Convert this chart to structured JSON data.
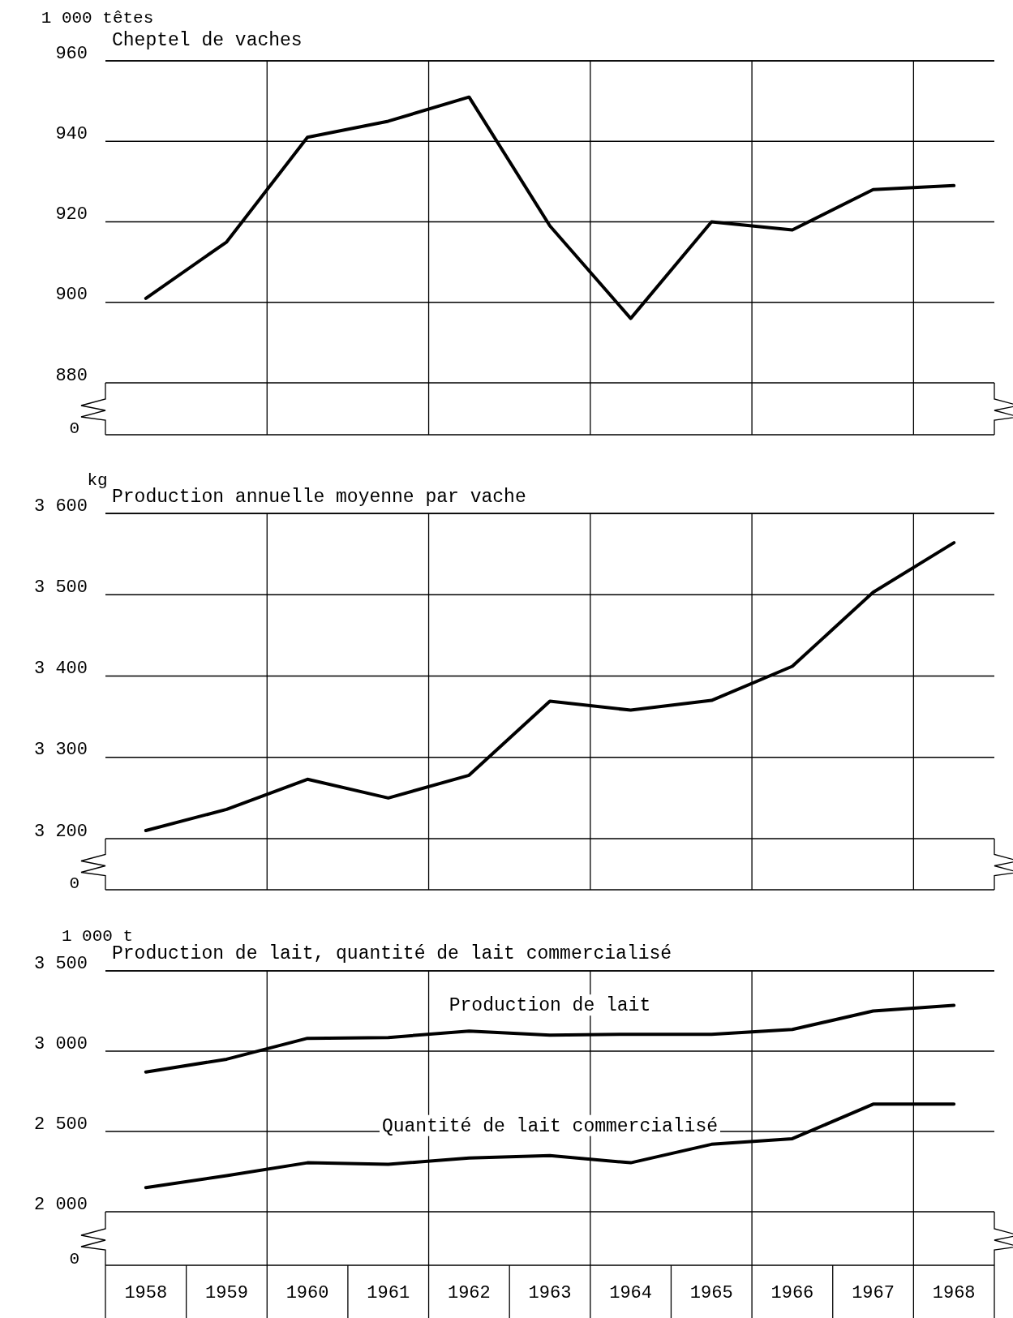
{
  "chart_data": [
    {
      "type": "line",
      "title": "Cheptel de vaches",
      "ylabel": "1 000  têtes",
      "categories": [
        null,
        null,
        null,
        null,
        null,
        null,
        null,
        null,
        null,
        null,
        null
      ],
      "series": [
        {
          "color": "#000000",
          "values": [
            901,
            915,
            941,
            945,
            951,
            919,
            896,
            920,
            918,
            928,
            929
          ]
        }
      ],
      "ylim": [
        880,
        960
      ],
      "yticks": [
        880,
        900,
        920,
        940,
        960
      ],
      "grid": true,
      "tick_labels": "y",
      "annotations": [
        "0"
      ]
    },
    {
      "type": "line",
      "title": "Production annuelle moyenne par vache",
      "ylabel": "kg",
      "categories": [
        null,
        null,
        null,
        null,
        null,
        null,
        null,
        null,
        null,
        null,
        null
      ],
      "series": [
        {
          "color": "#000000",
          "values": [
            3210,
            3236,
            3273,
            3250,
            3278,
            3369,
            3358,
            3370,
            3412,
            3503,
            3564
          ]
        }
      ],
      "ylim": [
        3200,
        3600
      ],
      "yticks": [
        {
          "value": 3200,
          "label": "3 200"
        },
        {
          "value": 3300,
          "label": "3 300"
        },
        {
          "value": 3400,
          "label": "3 400"
        },
        {
          "value": 3500,
          "label": "3 500"
        },
        {
          "value": 3600,
          "label": "3 600"
        }
      ],
      "grid": true,
      "tick_labels": "y",
      "annotations": [
        "0"
      ]
    },
    {
      "type": "line",
      "title": "Production de lait, quantité de lait commercialisé",
      "ylabel": "1 000  t",
      "categories": [
        "1958",
        "1959",
        "1960",
        "1961",
        "1962",
        "1963",
        "1964",
        "1965",
        "1966",
        "1967",
        "1968"
      ],
      "series": [
        {
          "name": "Production de lait",
          "color": "#000000",
          "values": [
            2870,
            2950,
            3080,
            3085,
            3125,
            3100,
            3105,
            3105,
            3135,
            3250,
            3285
          ]
        },
        {
          "name": "Quantité de lait commercialisé",
          "color": "#000000",
          "values": [
            2150,
            2225,
            2305,
            2295,
            2335,
            2350,
            2305,
            2420,
            2455,
            2670,
            2670
          ]
        }
      ],
      "ylim": [
        2000,
        3500
      ],
      "yticks": [
        {
          "value": 2000,
          "label": "2 000"
        },
        {
          "value": 2500,
          "label": "2 500"
        },
        {
          "value": 3000,
          "label": "3 000"
        },
        {
          "value": 3500,
          "label": "3 500"
        }
      ],
      "grid": true,
      "annotations": [
        "0"
      ]
    }
  ]
}
